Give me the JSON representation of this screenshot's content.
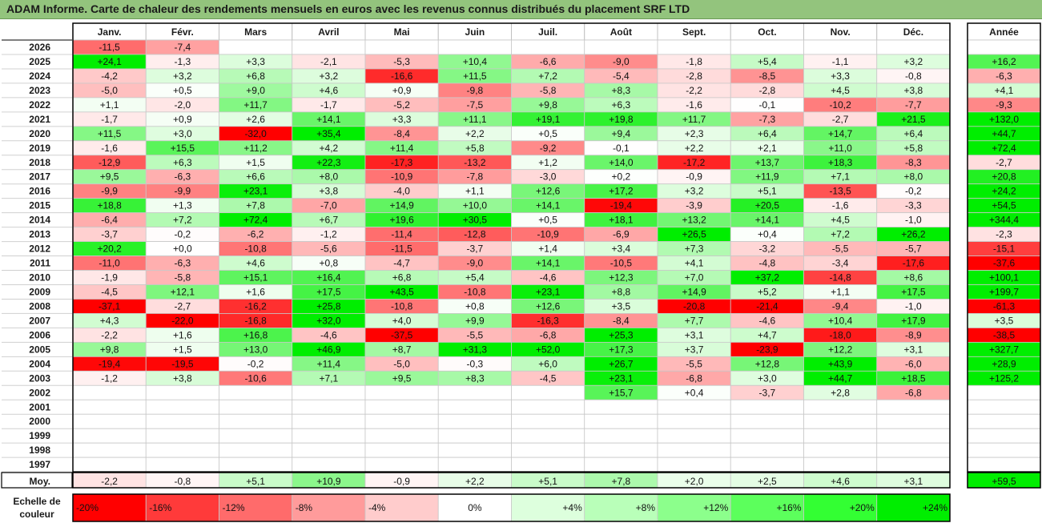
{
  "title": "ADAM Informe. Carte de chaleur des rendements mensuels en euros avec les revenus connus distribués du placement SRF LTD",
  "chart_data": {
    "type": "heatmap",
    "title": "ADAM Informe. Carte de chaleur des rendements mensuels en euros avec les revenus connus distribués du placement SRF LTD",
    "columns": [
      "Janv.",
      "Févr.",
      "Mars",
      "Avril",
      "Mai",
      "Juin",
      "Juil.",
      "Août",
      "Sept.",
      "Oct.",
      "Nov.",
      "Déc."
    ],
    "year_column_label": "Année",
    "rows": [
      {
        "year": "2026",
        "values": [
          "-11,5",
          "-7,4",
          "",
          "",
          "",
          "",
          "",
          "",
          "",
          "",
          "",
          ""
        ],
        "annual": ""
      },
      {
        "year": "2025",
        "values": [
          "+24,1",
          "-1,3",
          "+3,3",
          "-2,1",
          "-5,3",
          "+10,4",
          "-6,6",
          "-9,0",
          "-1,8",
          "+5,4",
          "-1,1",
          "+3,2"
        ],
        "annual": "+16,2"
      },
      {
        "year": "2024",
        "values": [
          "-4,2",
          "+3,2",
          "+6,8",
          "+3,2",
          "-16,6",
          "+11,5",
          "+7,2",
          "-5,4",
          "-2,8",
          "-8,5",
          "+3,3",
          "-0,8"
        ],
        "annual": "-6,3"
      },
      {
        "year": "2023",
        "values": [
          "-5,0",
          "+0,5",
          "+9,0",
          "+4,6",
          "+0,9",
          "-9,8",
          "-5,8",
          "+8,3",
          "-2,2",
          "-2,8",
          "+4,5",
          "+3,8"
        ],
        "annual": "+4,1"
      },
      {
        "year": "2022",
        "values": [
          "+1,1",
          "-2,0",
          "+11,7",
          "-1,7",
          "-5,2",
          "-7,5",
          "+9,8",
          "+6,3",
          "-1,6",
          "-0,1",
          "-10,2",
          "-7,7"
        ],
        "annual": "-9,3"
      },
      {
        "year": "2021",
        "values": [
          "-1,7",
          "+0,9",
          "+2,6",
          "+14,1",
          "+3,3",
          "+11,1",
          "+19,1",
          "+19,8",
          "+11,7",
          "-7,3",
          "-2,7",
          "+21,5"
        ],
        "annual": "+132,0"
      },
      {
        "year": "2020",
        "values": [
          "+11,5",
          "+3,0",
          "-32,0",
          "+35,4",
          "-8,4",
          "+2,2",
          "+0,5",
          "+9,4",
          "+2,3",
          "+6,4",
          "+14,7",
          "+6,4"
        ],
        "annual": "+44,7"
      },
      {
        "year": "2019",
        "values": [
          "-1,6",
          "+15,5",
          "+11,2",
          "+4,2",
          "+11,4",
          "+5,8",
          "-9,2",
          "-0,1",
          "+2,2",
          "+2,1",
          "+11,0",
          "+5,8"
        ],
        "annual": "+72,4"
      },
      {
        "year": "2018",
        "values": [
          "-12,9",
          "+6,3",
          "+1,5",
          "+22,3",
          "-17,3",
          "-13,2",
          "+1,2",
          "+14,0",
          "-17,2",
          "+13,7",
          "+18,3",
          "-8,3"
        ],
        "annual": "-2,7"
      },
      {
        "year": "2017",
        "values": [
          "+9,5",
          "-6,3",
          "+6,6",
          "+8,0",
          "-10,9",
          "-7,8",
          "-3,0",
          "+0,2",
          "-0,9",
          "+11,9",
          "+7,1",
          "+8,0"
        ],
        "annual": "+20,8"
      },
      {
        "year": "2016",
        "values": [
          "-9,9",
          "-9,9",
          "+23,1",
          "+3,8",
          "-4,0",
          "+1,1",
          "+12,6",
          "+17,2",
          "+3,2",
          "+5,1",
          "-13,5",
          "-0,2"
        ],
        "annual": "+24,2"
      },
      {
        "year": "2015",
        "values": [
          "+18,8",
          "+1,3",
          "+7,8",
          "-7,0",
          "+14,9",
          "+10,0",
          "+14,1",
          "-19,4",
          "-3,9",
          "+20,5",
          "-1,6",
          "-3,3"
        ],
        "annual": "+54,5"
      },
      {
        "year": "2014",
        "values": [
          "-6,4",
          "+7,2",
          "+72,4",
          "+6,7",
          "+19,6",
          "+30,5",
          "+0,5",
          "+18,1",
          "+13,2",
          "+14,1",
          "+4,5",
          "-1,0"
        ],
        "annual": "+344,4"
      },
      {
        "year": "2013",
        "values": [
          "-3,7",
          "-0,2",
          "-6,2",
          "-1,2",
          "-11,4",
          "-12,8",
          "-10,9",
          "-6,9",
          "+26,5",
          "+0,4",
          "+7,2",
          "+26,2"
        ],
        "annual": "-2,3"
      },
      {
        "year": "2012",
        "values": [
          "+20,2",
          "+0,0",
          "-10,8",
          "-5,6",
          "-11,5",
          "-3,7",
          "+1,4",
          "+3,4",
          "+7,3",
          "-3,2",
          "-5,5",
          "-5,7"
        ],
        "annual": "-15,1"
      },
      {
        "year": "2011",
        "values": [
          "-11,0",
          "-6,3",
          "+4,6",
          "+0,8",
          "-4,7",
          "-9,0",
          "+14,1",
          "-10,5",
          "+4,1",
          "-4,8",
          "-3,4",
          "-17,6"
        ],
        "annual": "-37,6"
      },
      {
        "year": "2010",
        "values": [
          "-1,9",
          "-5,8",
          "+15,1",
          "+16,4",
          "+6,8",
          "+5,4",
          "-4,6",
          "+12,3",
          "+7,0",
          "+37,2",
          "-14,8",
          "+8,6"
        ],
        "annual": "+100,1"
      },
      {
        "year": "2009",
        "values": [
          "-4,5",
          "+12,1",
          "+1,6",
          "+17,5",
          "+43,5",
          "-10,8",
          "+23,1",
          "+8,8",
          "+14,9",
          "+5,2",
          "+1,1",
          "+17,5"
        ],
        "annual": "+199,7"
      },
      {
        "year": "2008",
        "values": [
          "-37,1",
          "-2,7",
          "-16,2",
          "+25,8",
          "-10,8",
          "+0,8",
          "+12,6",
          "+3,5",
          "-20,8",
          "-21,4",
          "-9,4",
          "-1,0"
        ],
        "annual": "-61,3"
      },
      {
        "year": "2007",
        "values": [
          "+4,3",
          "-22,0",
          "-16,8",
          "+32,0",
          "+4,0",
          "+9,9",
          "-16,3",
          "-8,4",
          "+7,7",
          "-4,6",
          "+10,4",
          "+17,9"
        ],
        "annual": "+3,5"
      },
      {
        "year": "2006",
        "values": [
          "-2,2",
          "+1,6",
          "+16,8",
          "-4,6",
          "-37,5",
          "-5,5",
          "-6,8",
          "+25,3",
          "+3,1",
          "+4,7",
          "-18,0",
          "-8,9"
        ],
        "annual": "-38,5"
      },
      {
        "year": "2005",
        "values": [
          "+9,8",
          "+1,5",
          "+13,0",
          "+46,9",
          "+8,7",
          "+31,3",
          "+52,0",
          "+17,3",
          "+3,7",
          "-23,9",
          "+12,2",
          "+3,1"
        ],
        "annual": "+327,7"
      },
      {
        "year": "2004",
        "values": [
          "-19,4",
          "-19,5",
          "-0,2",
          "+11,4",
          "-5,0",
          "-0,3",
          "+6,0",
          "+26,7",
          "-5,5",
          "+12,8",
          "+43,9",
          "-6,0"
        ],
        "annual": "+28,9"
      },
      {
        "year": "2003",
        "values": [
          "-1,2",
          "+3,8",
          "-10,6",
          "+7,1",
          "+9,5",
          "+8,3",
          "-4,5",
          "+23,1",
          "-6,8",
          "+3,0",
          "+44,7",
          "+18,5"
        ],
        "annual": "+125,2"
      },
      {
        "year": "2002",
        "values": [
          "",
          "",
          "",
          "",
          "",
          "",
          "",
          "+15,7",
          "+0,4",
          "-3,7",
          "+2,8",
          "-6,8"
        ],
        "annual": ""
      },
      {
        "year": "2001",
        "values": [
          "",
          "",
          "",
          "",
          "",
          "",
          "",
          "",
          "",
          "",
          "",
          ""
        ],
        "annual": ""
      },
      {
        "year": "2000",
        "values": [
          "",
          "",
          "",
          "",
          "",
          "",
          "",
          "",
          "",
          "",
          "",
          ""
        ],
        "annual": ""
      },
      {
        "year": "1999",
        "values": [
          "",
          "",
          "",
          "",
          "",
          "",
          "",
          "",
          "",
          "",
          "",
          ""
        ],
        "annual": ""
      },
      {
        "year": "1998",
        "values": [
          "",
          "",
          "",
          "",
          "",
          "",
          "",
          "",
          "",
          "",
          "",
          ""
        ],
        "annual": ""
      },
      {
        "year": "1997",
        "values": [
          "",
          "",
          "",
          "",
          "",
          "",
          "",
          "",
          "",
          "",
          "",
          ""
        ],
        "annual": ""
      }
    ],
    "average_row": {
      "label": "Moy.",
      "values": [
        "-2,2",
        "-0,8",
        "+5,1",
        "+10,9",
        "-0,9",
        "+2,2",
        "+5,1",
        "+7,8",
        "+2,0",
        "+2,5",
        "+4,6",
        "+3,1"
      ],
      "annual": "+59,5"
    },
    "color_scale": {
      "label_line1": "Echelle de",
      "label_line2": "couleur",
      "stops": [
        {
          "label": "-20%",
          "color": "#ff0000"
        },
        {
          "label": "-16%",
          "color": "#ff3a3a"
        },
        {
          "label": "-12%",
          "color": "#ff6b6b"
        },
        {
          "label": "-8%",
          "color": "#ff9b9b"
        },
        {
          "label": "-4%",
          "color": "#ffcccc"
        },
        {
          "label": "0%",
          "color": "#ffffff"
        },
        {
          "label": "+4%",
          "color": "#ddffdd"
        },
        {
          "label": "+8%",
          "color": "#b9ffb9"
        },
        {
          "label": "+12%",
          "color": "#8cff8c"
        },
        {
          "label": "+16%",
          "color": "#5cff5c"
        },
        {
          "label": "+20%",
          "color": "#33ff33"
        },
        {
          "label": "+24%",
          "color": "#00ee00"
        }
      ]
    },
    "colors": {
      "title_background": "#93c47d",
      "strong_negative": "#ff0000",
      "strong_positive": "#00ee00",
      "neutral": "#ffffff"
    }
  }
}
